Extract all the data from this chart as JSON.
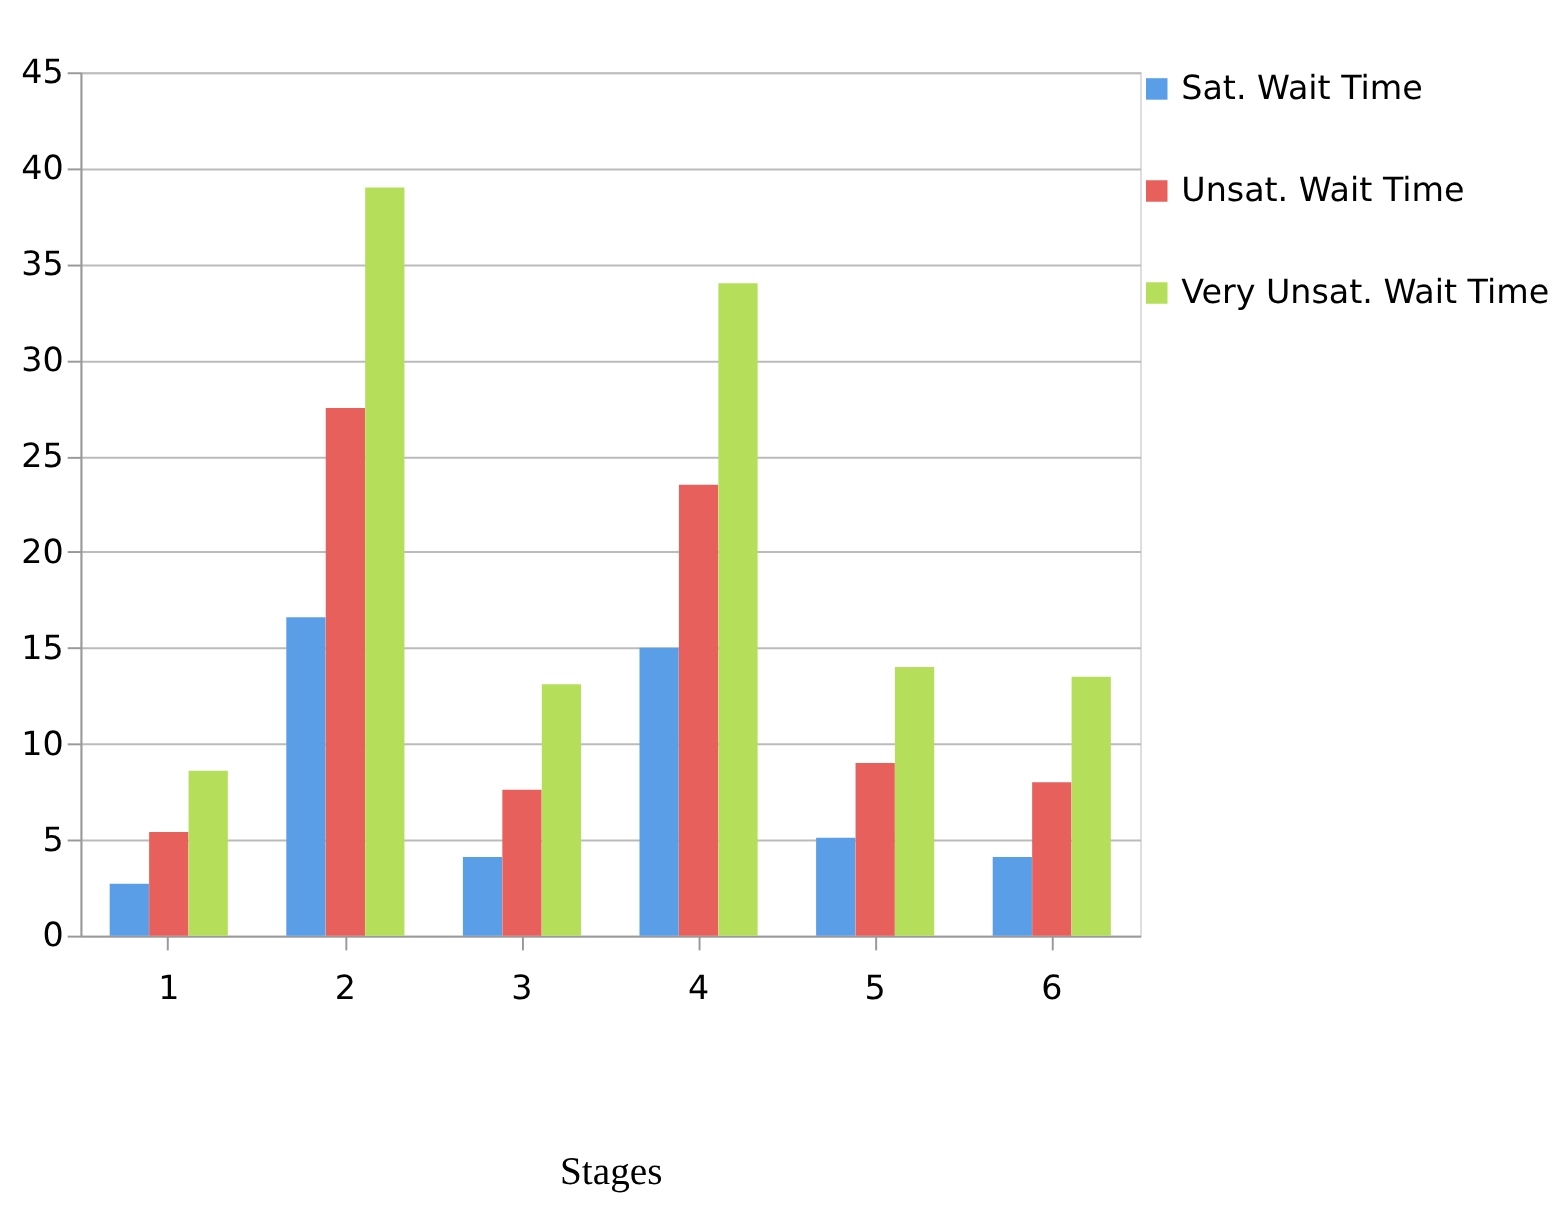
{
  "chart_data": {
    "type": "bar",
    "xlabel": "Stages",
    "categories": [
      "1",
      "2",
      "3",
      "4",
      "5",
      "6"
    ],
    "series": [
      {
        "name": "Sat. Wait Time",
        "color": "#5b9ee8",
        "values": [
          2.7,
          16.6,
          4.1,
          15,
          5.1,
          4.1
        ]
      },
      {
        "name": "Unsat. Wait Time",
        "color": "#e8605c",
        "values": [
          5.4,
          27.5,
          7.6,
          23.5,
          9,
          8
        ]
      },
      {
        "name": "Very Unsat. Wait Time",
        "color": "#b5df5a",
        "values": [
          8.6,
          39,
          13.1,
          34,
          14,
          13.5
        ]
      }
    ],
    "ylim": [
      0,
      45
    ],
    "yticks": [
      0,
      5,
      10,
      15,
      20,
      25,
      30,
      35,
      40,
      45
    ],
    "grid": "y",
    "legend": "top right"
  }
}
